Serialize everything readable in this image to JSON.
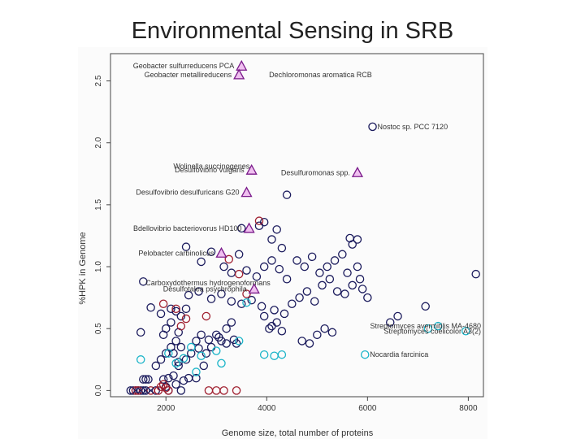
{
  "page": {
    "title": "Environmental Sensing in SRB"
  },
  "chart_data": {
    "type": "scatter",
    "xlabel": "Genome size, total number of proteins",
    "ylabel": "%HPK in Genome",
    "xlim": [
      900,
      8300
    ],
    "ylim": [
      -0.05,
      2.72
    ],
    "x_ticks": [
      2000,
      4000,
      6000,
      8000
    ],
    "x_tick_labels": [
      "2000",
      "4000",
      "6000",
      "8000"
    ],
    "y_ticks": [
      0.0,
      0.5,
      1.0,
      1.5,
      2.0,
      2.5
    ],
    "y_tick_labels": [
      "0.0",
      "0.5",
      "1.0",
      "1.5",
      "2.0",
      "2.5"
    ],
    "grid": false,
    "colors": {
      "triangle_fill": "#f0c0f0",
      "triangle_edge": "#7a1a8a",
      "navy": "#1a1a5c",
      "cyan": "#1ab4c8",
      "red": "#a02030"
    },
    "highlighted": [
      {
        "label": "Geobacter sulfurreducens PCA",
        "x": 3500,
        "y": 2.62
      },
      {
        "label": "Geobacter metallireducens",
        "x": 3450,
        "y": 2.55
      },
      {
        "label": "Desulfovibrio vulgaris",
        "x": 3700,
        "y": 1.78
      },
      {
        "label": "Desulfuromonas spp.",
        "x": 5800,
        "y": 1.76
      },
      {
        "label": "Desulfovibrio desulfuricans G20",
        "x": 3600,
        "y": 1.6
      },
      {
        "label": "Bdellovibrio bacteriovorus HD100",
        "x": 3650,
        "y": 1.31
      },
      {
        "label": "Pelobacter carbinolicus",
        "x": 3100,
        "y": 1.11
      },
      {
        "label": "Desulfotalea psychrophila",
        "x": 3750,
        "y": 0.82
      }
    ],
    "annotations": [
      {
        "label": "Dechloromonas aromatica RCB",
        "x": 3950,
        "y": 2.55
      },
      {
        "label": "Nostoc sp. PCC 7120",
        "x": 6100,
        "y": 2.13
      },
      {
        "label": "Wolinella succinogenes",
        "x": 2050,
        "y": 1.81
      },
      {
        "label": "Carboxydothermus hydrogenoformans",
        "x": 1500,
        "y": 0.87
      },
      {
        "label": "Streptomyces avermitilis MA-4680",
        "x": 7800,
        "y": 0.52
      },
      {
        "label": "Streptomyces coelicolor A3(2)",
        "x": 7950,
        "y": 0.48
      },
      {
        "label": "Nocardia farcinica",
        "x": 5950,
        "y": 0.29
      }
    ],
    "series": [
      {
        "color": "navy",
        "points": [
          [
            1300,
            0
          ],
          [
            1350,
            0
          ],
          [
            1400,
            0
          ],
          [
            1450,
            0
          ],
          [
            1500,
            0
          ],
          [
            1550,
            0
          ],
          [
            1600,
            0
          ],
          [
            1550,
            0.09
          ],
          [
            1600,
            0.09
          ],
          [
            1650,
            0.09
          ],
          [
            1500,
            0.47
          ],
          [
            2050,
            0.1
          ],
          [
            2350,
            0.08
          ],
          [
            2450,
            0.1
          ],
          [
            1800,
            0.2
          ],
          [
            1900,
            0.25
          ],
          [
            2000,
            0.3
          ],
          [
            2100,
            0.35
          ],
          [
            2200,
            0.4
          ],
          [
            1950,
            0.45
          ],
          [
            2150,
            0.3
          ],
          [
            2250,
            0.2
          ],
          [
            2300,
            0.35
          ],
          [
            2400,
            0.25
          ],
          [
            2500,
            0.3
          ],
          [
            2600,
            0.4
          ],
          [
            2700,
            0.45
          ],
          [
            2800,
            0.3
          ],
          [
            2900,
            0.35
          ],
          [
            3000,
            0.45
          ],
          [
            3100,
            0.4
          ],
          [
            3200,
            0.5
          ],
          [
            3300,
            0.55
          ],
          [
            3400,
            0.38
          ],
          [
            1900,
            0.62
          ],
          [
            2100,
            0.55
          ],
          [
            2300,
            0.6
          ],
          [
            2400,
            0.66
          ],
          [
            2000,
            0.5
          ],
          [
            2250,
            0.47
          ],
          [
            1700,
            0.67
          ],
          [
            2100,
            0.66
          ],
          [
            2200,
            0.64
          ],
          [
            2450,
            0.77
          ],
          [
            2650,
            0.8
          ],
          [
            2900,
            0.74
          ],
          [
            3100,
            0.78
          ],
          [
            3300,
            0.72
          ],
          [
            3500,
            0.7
          ],
          [
            3700,
            0.73
          ],
          [
            3900,
            0.68
          ],
          [
            2400,
            1.16
          ],
          [
            2700,
            1.04
          ],
          [
            2900,
            1.12
          ],
          [
            3150,
            1.0
          ],
          [
            3300,
            0.95
          ],
          [
            3450,
            1.1
          ],
          [
            3600,
            0.97
          ],
          [
            3800,
            0.92
          ],
          [
            3950,
            1.0
          ],
          [
            4100,
            1.05
          ],
          [
            4250,
            0.98
          ],
          [
            4400,
            0.9
          ],
          [
            4100,
            1.22
          ],
          [
            4300,
            1.15
          ],
          [
            3500,
            1.31
          ],
          [
            3850,
            1.33
          ],
          [
            4200,
            1.3
          ],
          [
            3950,
            1.36
          ],
          [
            4050,
            0.5
          ],
          [
            4100,
            0.52
          ],
          [
            4200,
            0.55
          ],
          [
            4300,
            0.48
          ],
          [
            3950,
            0.6
          ],
          [
            4150,
            0.65
          ],
          [
            4350,
            0.62
          ],
          [
            4500,
            0.7
          ],
          [
            4650,
            0.75
          ],
          [
            4800,
            0.8
          ],
          [
            4950,
            0.72
          ],
          [
            5100,
            0.85
          ],
          [
            5250,
            0.9
          ],
          [
            5400,
            0.8
          ],
          [
            5550,
            0.78
          ],
          [
            5700,
            0.85
          ],
          [
            5850,
            0.9
          ],
          [
            5600,
            0.95
          ],
          [
            5800,
            1.0
          ],
          [
            5900,
            0.82
          ],
          [
            6000,
            0.75
          ],
          [
            4600,
            1.05
          ],
          [
            4750,
            1.0
          ],
          [
            4900,
            1.08
          ],
          [
            5050,
            0.95
          ],
          [
            5200,
            1.0
          ],
          [
            5350,
            1.05
          ],
          [
            5500,
            1.1
          ],
          [
            5700,
            1.18
          ],
          [
            5650,
            1.23
          ],
          [
            5800,
            1.22
          ],
          [
            4400,
            1.58
          ],
          [
            6100,
            2.13
          ],
          [
            8150,
            0.94
          ],
          [
            1550,
            0.88
          ],
          [
            4700,
            0.4
          ],
          [
            4850,
            0.38
          ],
          [
            5000,
            0.45
          ],
          [
            5150,
            0.5
          ],
          [
            5300,
            0.47
          ],
          [
            6450,
            0.55
          ],
          [
            6600,
            0.6
          ],
          [
            7150,
            0.68
          ],
          [
            2650,
            0.34
          ],
          [
            2850,
            0.41
          ],
          [
            3050,
            0.43
          ],
          [
            3200,
            0.38
          ],
          [
            3350,
            0.41
          ],
          [
            2750,
            0.2
          ],
          [
            2600,
            0.1
          ],
          [
            2150,
            0.12
          ],
          [
            2200,
            0.05
          ],
          [
            2050,
            0.0
          ],
          [
            2000,
            0.03
          ],
          [
            1950,
            0.09
          ],
          [
            1800,
            0.0
          ],
          [
            2300,
            0.0
          ],
          [
            2250,
            0.23
          ]
        ]
      },
      {
        "color": "cyan",
        "points": [
          [
            1500,
            0.25
          ],
          [
            2050,
            0.3
          ],
          [
            2200,
            0.22
          ],
          [
            2350,
            0.26
          ],
          [
            2500,
            0.35
          ],
          [
            2600,
            0.15
          ],
          [
            2700,
            0.28
          ],
          [
            3000,
            0.32
          ],
          [
            3100,
            0.22
          ],
          [
            3600,
            0.71
          ],
          [
            3450,
            0.4
          ],
          [
            3950,
            0.29
          ],
          [
            4150,
            0.28
          ],
          [
            4300,
            0.29
          ],
          [
            5950,
            0.29
          ],
          [
            7200,
            0.5
          ],
          [
            7400,
            0.52
          ],
          [
            7950,
            0.48
          ]
        ]
      },
      {
        "color": "red",
        "points": [
          [
            1400,
            0.0
          ],
          [
            1450,
            0.0
          ],
          [
            1700,
            0.0
          ],
          [
            1850,
            0.0
          ],
          [
            1900,
            0.03
          ],
          [
            1950,
            0.05
          ],
          [
            2000,
            0.02
          ],
          [
            2050,
            0.0
          ],
          [
            2850,
            0.0
          ],
          [
            3000,
            0.0
          ],
          [
            3150,
            0.0
          ],
          [
            3400,
            0.0
          ],
          [
            1950,
            0.7
          ],
          [
            2400,
            0.58
          ],
          [
            2200,
            0.66
          ],
          [
            2300,
            0.52
          ],
          [
            2800,
            0.6
          ],
          [
            3850,
            1.37
          ],
          [
            3250,
            1.06
          ],
          [
            3450,
            0.94
          ],
          [
            3600,
            0.78
          ]
        ]
      }
    ],
    "crosses": [
      [
        1400,
        0
      ],
      [
        1500,
        0
      ],
      [
        1600,
        0
      ],
      [
        1700,
        0
      ]
    ]
  }
}
